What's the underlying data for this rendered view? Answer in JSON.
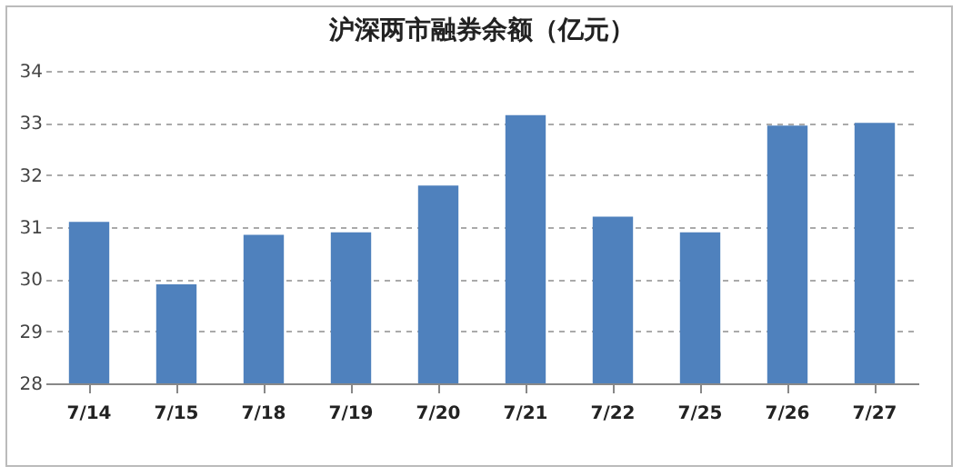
{
  "chart_data": {
    "type": "bar",
    "title": "沪深两市融券余额（亿元）",
    "categories": [
      "7/14",
      "7/15",
      "7/18",
      "7/19",
      "7/20",
      "7/21",
      "7/22",
      "7/25",
      "7/26",
      "7/27"
    ],
    "values": [
      31.1,
      29.9,
      30.85,
      30.9,
      31.8,
      33.15,
      31.2,
      30.9,
      32.95,
      33.0
    ],
    "color": "#4f81bd",
    "ylim": [
      28,
      34
    ],
    "yticks": [
      28,
      29,
      30,
      31,
      32,
      33,
      34
    ],
    "grid": "y"
  }
}
